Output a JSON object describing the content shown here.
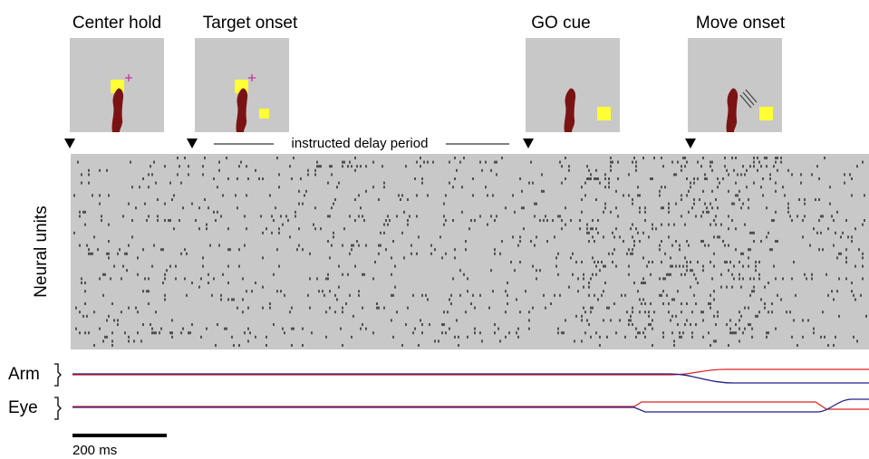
{
  "events": [
    {
      "label": "Center hold"
    },
    {
      "label": "Target onset"
    },
    {
      "label": "GO cue"
    },
    {
      "label": "Move onset"
    }
  ],
  "delay_label": "instructed delay period",
  "raster_label": "Neural units",
  "traces": [
    {
      "label": "Arm"
    },
    {
      "label": "Eye"
    }
  ],
  "scale_bar": "200 ms"
}
